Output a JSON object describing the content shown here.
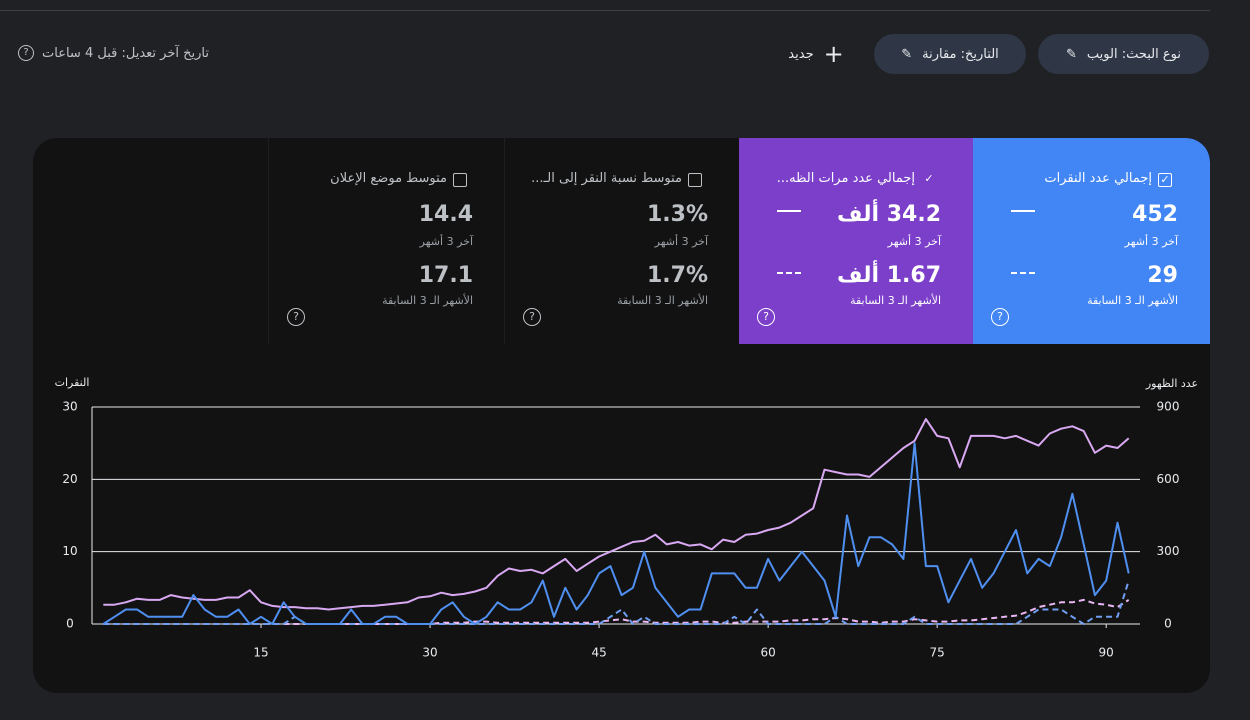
{
  "toolbar": {
    "search_type": "نوع البحث: الويب",
    "date": "التاريخ: مقارنة",
    "new": "جديد",
    "last_updated": "تاريخ آخر تعديل: قبل 4 ساعات"
  },
  "cards": [
    {
      "title": "إجمالي عدد النقرات",
      "current": "452",
      "current_label": "آخر 3 أشهر",
      "previous": "29",
      "previous_label": "الأشهر الـ 3 السابقة"
    },
    {
      "title": "إجمالي عدد مرات الظه...",
      "current": "34.2 ألف",
      "current_label": "آخر 3 أشهر",
      "previous": "1.67 ألف",
      "previous_label": "الأشهر الـ 3 السابقة"
    },
    {
      "title": "متوسط نسبة النقر إلى الـ...",
      "current": "1.3%",
      "current_label": "آخر 3 أشهر",
      "previous": "1.7%",
      "previous_label": "الأشهر الـ 3 السابقة"
    },
    {
      "title": "متوسط موضع الإعلان",
      "current": "14.4",
      "current_label": "آخر 3 أشهر",
      "previous": "17.1",
      "previous_label": "الأشهر الـ 3 السابقة"
    }
  ],
  "chart_data": {
    "type": "line",
    "y_label": "النقرات",
    "y2_label": "عدد الظهور",
    "grid": true,
    "x": [
      1,
      2,
      3,
      4,
      5,
      6,
      7,
      8,
      9,
      10,
      11,
      12,
      13,
      14,
      15,
      16,
      17,
      18,
      19,
      20,
      21,
      22,
      23,
      24,
      25,
      26,
      27,
      28,
      29,
      30,
      31,
      32,
      33,
      34,
      35,
      36,
      37,
      38,
      39,
      40,
      41,
      42,
      43,
      44,
      45,
      46,
      47,
      48,
      49,
      50,
      51,
      52,
      53,
      54,
      55,
      56,
      57,
      58,
      59,
      60,
      61,
      62,
      63,
      64,
      65,
      66,
      67,
      68,
      69,
      70,
      71,
      72,
      73,
      74,
      75,
      76,
      77,
      78,
      79,
      80,
      81,
      82,
      83,
      84,
      85,
      86,
      87,
      88,
      89,
      90,
      91,
      92
    ],
    "xlim": [
      0,
      93
    ],
    "xticks": [
      15,
      30,
      45,
      60,
      75,
      90
    ],
    "ylim": [
      0,
      30
    ],
    "yticks": [
      0,
      10,
      20,
      30
    ],
    "y2lim": [
      0,
      900
    ],
    "y2ticks": [
      0,
      300,
      600,
      900
    ],
    "series": [
      {
        "color": "#4f8ff0",
        "dashed": false,
        "values": [
          0,
          1,
          2,
          2,
          1,
          1,
          1,
          1,
          4,
          2,
          1,
          1,
          2,
          0,
          1,
          0,
          3,
          1,
          0,
          0,
          0,
          0,
          2,
          0,
          0,
          1,
          1,
          0,
          0,
          0,
          2,
          3,
          1,
          0,
          1,
          3,
          2,
          2,
          3,
          6,
          1,
          5,
          2,
          4,
          7,
          8,
          4,
          5,
          10,
          5,
          3,
          1,
          2,
          2,
          7,
          7,
          7,
          5,
          5,
          9,
          6,
          8,
          10,
          8,
          6,
          1,
          15,
          8,
          12,
          12,
          11,
          9,
          25,
          8,
          8,
          3,
          6,
          9,
          5,
          7,
          10,
          13,
          7,
          9,
          8,
          12,
          18,
          11,
          4,
          6,
          14,
          7
        ]
      },
      {
        "color": "#d9a8f2",
        "dashed": false,
        "axis": "y2",
        "values": [
          80,
          80,
          90,
          105,
          100,
          100,
          120,
          110,
          105,
          100,
          100,
          110,
          110,
          140,
          90,
          75,
          70,
          70,
          65,
          65,
          60,
          65,
          70,
          75,
          75,
          80,
          85,
          90,
          110,
          115,
          130,
          120,
          125,
          135,
          150,
          200,
          230,
          220,
          225,
          210,
          240,
          270,
          220,
          250,
          280,
          300,
          320,
          340,
          345,
          370,
          330,
          340,
          325,
          330,
          310,
          350,
          340,
          370,
          375,
          390,
          400,
          420,
          450,
          480,
          640,
          630,
          620,
          620,
          610,
          650,
          690,
          730,
          760,
          850,
          780,
          770,
          650,
          780,
          780,
          780,
          770,
          780,
          760,
          740,
          790,
          810,
          820,
          800,
          710,
          740,
          730,
          770
        ]
      },
      {
        "color": "#6f9ef2",
        "dashed": true,
        "values": [
          0,
          0,
          0,
          0,
          0,
          0,
          0,
          0,
          0,
          0,
          0,
          0,
          0,
          0,
          0,
          0,
          0,
          1,
          0,
          0,
          0,
          0,
          0,
          0,
          0,
          0,
          0,
          0,
          0,
          0,
          0,
          0,
          0,
          0,
          0,
          0,
          0,
          0,
          0,
          0,
          0,
          0,
          0,
          0,
          0,
          1,
          2,
          0,
          1,
          0,
          0,
          0,
          0,
          0,
          0,
          0,
          1,
          0,
          2,
          0,
          0,
          0,
          0,
          0,
          0,
          1,
          0,
          0,
          0,
          0,
          0,
          0,
          1,
          0,
          0,
          0,
          0,
          0,
          0,
          0,
          0,
          0,
          1,
          2,
          2,
          2,
          1,
          0,
          1,
          1,
          1,
          6
        ]
      },
      {
        "color": "#e9b7f3",
        "dashed": true,
        "axis": "y2",
        "values": [
          0,
          0,
          0,
          0,
          0,
          0,
          0,
          0,
          0,
          0,
          0,
          0,
          0,
          0,
          0,
          0,
          0,
          0,
          0,
          0,
          0,
          0,
          0,
          0,
          0,
          0,
          0,
          0,
          0,
          0,
          5,
          5,
          5,
          10,
          10,
          5,
          5,
          5,
          5,
          5,
          5,
          5,
          5,
          5,
          10,
          15,
          20,
          10,
          10,
          5,
          5,
          5,
          5,
          10,
          10,
          5,
          5,
          10,
          10,
          10,
          10,
          15,
          15,
          20,
          20,
          25,
          20,
          10,
          10,
          5,
          10,
          10,
          20,
          15,
          10,
          10,
          15,
          15,
          20,
          25,
          30,
          35,
          50,
          70,
          80,
          90,
          90,
          100,
          85,
          80,
          70,
          100
        ]
      }
    ]
  }
}
